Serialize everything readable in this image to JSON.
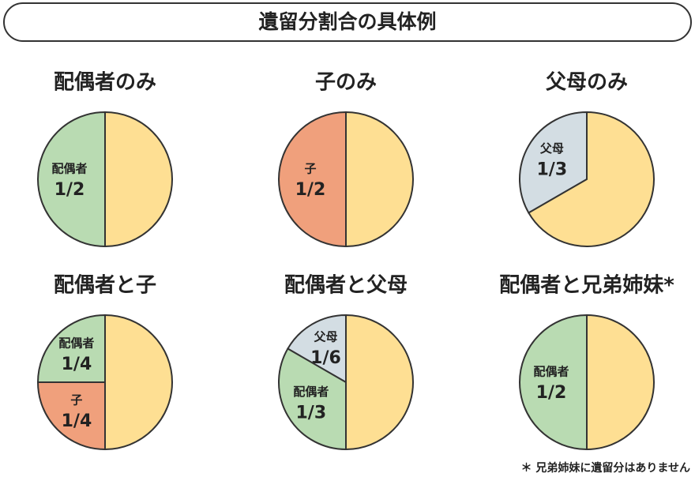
{
  "header": {
    "title": "遺留分割合の具体例"
  },
  "chart_data": [
    {
      "type": "pie",
      "title": "配偶者のみ",
      "categories": [
        "配偶者",
        null
      ],
      "values": [
        0.5,
        0.5
      ],
      "value_labels": [
        "1/2",
        null
      ],
      "colors": [
        "#b9dbb2",
        "#fedf93"
      ]
    },
    {
      "type": "pie",
      "title": "子のみ",
      "categories": [
        "子",
        null
      ],
      "values": [
        0.5,
        0.5
      ],
      "value_labels": [
        "1/2",
        null
      ],
      "colors": [
        "#f0a07c",
        "#fedf93"
      ]
    },
    {
      "type": "pie",
      "title": "父母のみ",
      "categories": [
        "父母",
        null
      ],
      "values": [
        0.3333,
        0.6667
      ],
      "value_labels": [
        "1/3",
        null
      ],
      "colors": [
        "#d3dde3",
        "#fedf93"
      ]
    },
    {
      "type": "pie",
      "title": "配偶者と子",
      "categories": [
        "配偶者",
        "子",
        null
      ],
      "values": [
        0.25,
        0.25,
        0.5
      ],
      "value_labels": [
        "1/4",
        "1/4",
        null
      ],
      "colors": [
        "#b9dbb2",
        "#f0a07c",
        "#fedf93"
      ]
    },
    {
      "type": "pie",
      "title": "配偶者と父母",
      "categories": [
        "父母",
        "配偶者",
        null
      ],
      "values": [
        0.1667,
        0.3333,
        0.5
      ],
      "value_labels": [
        "1/6",
        "1/3",
        null
      ],
      "colors": [
        "#d3dde3",
        "#b9dbb2",
        "#fedf93"
      ]
    },
    {
      "type": "pie",
      "title": "配偶者と兄弟姉妹*",
      "categories": [
        "配偶者",
        null
      ],
      "values": [
        0.5,
        0.5
      ],
      "value_labels": [
        "1/2",
        null
      ],
      "colors": [
        "#b9dbb2",
        "#fedf93"
      ]
    }
  ],
  "footnote": "＊ 兄弟姉妹に遺留分はありません"
}
